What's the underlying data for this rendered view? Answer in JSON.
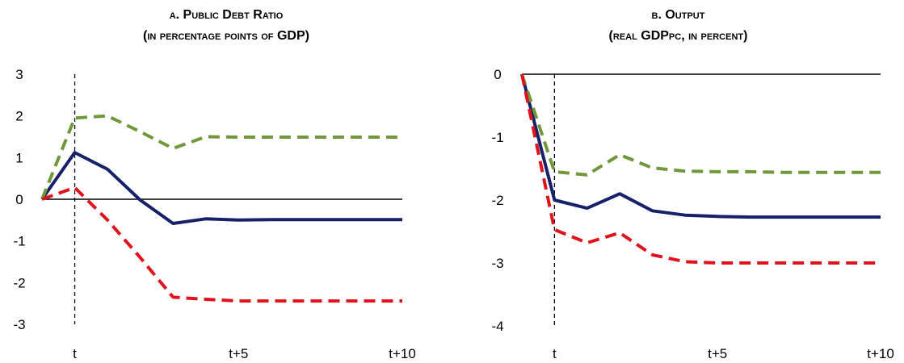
{
  "colors": {
    "baseline": "#16216a",
    "upper": "#70983a",
    "lower": "#e0121b"
  },
  "chart_data": [
    {
      "panel": "a",
      "type": "line",
      "title": "a. Public Debt Ratio",
      "subtitle": "(in percentage points of GDP)",
      "x_ticks": [
        "t",
        "t+5",
        "t+10"
      ],
      "x": [
        "t-1",
        "t",
        "t+1",
        "t+2",
        "t+3",
        "t+4",
        "t+5",
        "t+6",
        "t+7",
        "t+8",
        "t+9",
        "t+10"
      ],
      "ylim": [
        -3,
        3
      ],
      "y_ticks": [
        "3",
        "2",
        "1",
        "0",
        "-1",
        "-2",
        "-3"
      ],
      "grid": false,
      "legend": "none",
      "vertical_marker_at": "t",
      "series": [
        {
          "style": "solid",
          "color": "#16216a",
          "values": [
            0,
            1.12,
            0.72,
            -0.02,
            -0.58,
            -0.47,
            -0.5,
            -0.49,
            -0.49,
            -0.49,
            -0.49,
            -0.49
          ]
        },
        {
          "style": "dashed",
          "color": "#70983a",
          "values": [
            0,
            1.95,
            2.0,
            1.62,
            1.22,
            1.5,
            1.49,
            1.49,
            1.49,
            1.49,
            1.49,
            1.49
          ]
        },
        {
          "style": "dashed",
          "color": "#e0121b",
          "values": [
            0,
            0.28,
            -0.5,
            -1.4,
            -2.35,
            -2.4,
            -2.44,
            -2.44,
            -2.44,
            -2.44,
            -2.44,
            -2.44
          ]
        }
      ]
    },
    {
      "panel": "b",
      "type": "line",
      "title": "b. Output",
      "subtitle": "(real GDPpc, in percent)",
      "x_ticks": [
        "t",
        "t+5",
        "t+10"
      ],
      "x": [
        "t-1",
        "t",
        "t+1",
        "t+2",
        "t+3",
        "t+4",
        "t+5",
        "t+6",
        "t+7",
        "t+8",
        "t+9",
        "t+10"
      ],
      "ylim": [
        -4,
        0
      ],
      "y_ticks": [
        "0",
        "-1",
        "-2",
        "-3",
        "-4"
      ],
      "grid": false,
      "legend": "none",
      "vertical_marker_at": "t",
      "series": [
        {
          "style": "solid",
          "color": "#16216a",
          "values": [
            0,
            -2.0,
            -2.13,
            -1.9,
            -2.17,
            -2.24,
            -2.26,
            -2.27,
            -2.27,
            -2.27,
            -2.27,
            -2.27
          ]
        },
        {
          "style": "dashed",
          "color": "#70983a",
          "values": [
            0,
            -1.55,
            -1.6,
            -1.28,
            -1.49,
            -1.54,
            -1.55,
            -1.55,
            -1.56,
            -1.56,
            -1.56,
            -1.56
          ]
        },
        {
          "style": "dashed",
          "color": "#e0121b",
          "values": [
            0,
            -2.47,
            -2.68,
            -2.52,
            -2.87,
            -2.98,
            -3.0,
            -3.0,
            -3.0,
            -3.0,
            -3.0,
            -3.0
          ]
        }
      ]
    }
  ]
}
